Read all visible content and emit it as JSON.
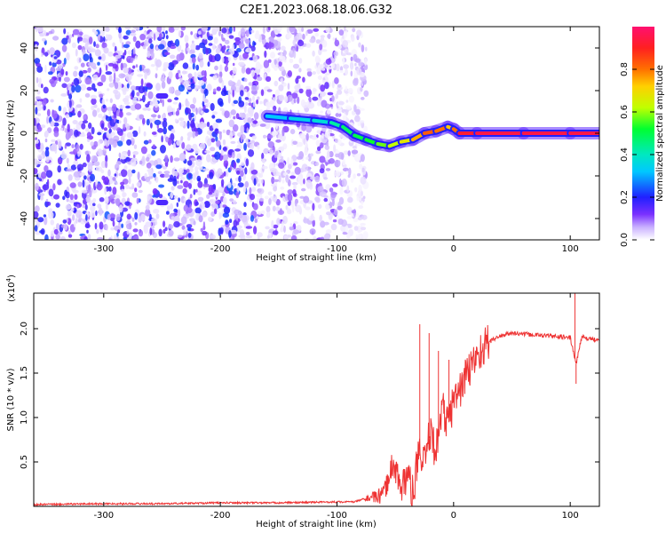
{
  "title": "C2E1.2023.068.18.06.G32",
  "chart_data": [
    {
      "type": "heatmap",
      "xlabel": "Height of straight line (km)",
      "ylabel": "Frequency (Hz)",
      "xlim": [
        -360,
        125
      ],
      "ylim": [
        -50,
        50
      ],
      "xticks": [
        -300,
        -200,
        -100,
        0,
        100
      ],
      "yticks": [
        -40,
        -20,
        0,
        20,
        40
      ],
      "xtick_labels": [
        "-300",
        "-200",
        "-100",
        "0",
        "100"
      ],
      "ytick_labels": [
        "-40",
        "-20",
        "0",
        "20",
        "40"
      ],
      "colorbar": {
        "label": "Normalized spectral amplitude",
        "range": [
          0,
          1
        ],
        "ticks": [
          0.0,
          0.2,
          0.4,
          0.6,
          0.8
        ],
        "tick_labels": [
          "0.0",
          "0.2",
          "0.4",
          "0.6",
          "0.8"
        ]
      },
      "signal_trace": {
        "x": [
          -160,
          -140,
          -120,
          -105,
          -95,
          -85,
          -75,
          -65,
          -55,
          -45,
          -35,
          -25,
          -15,
          -5,
          0,
          5,
          20,
          60,
          100,
          125
        ],
        "frequency": [
          8,
          7,
          6,
          5,
          3,
          -1,
          -3,
          -5,
          -6,
          -4,
          -3,
          0,
          1,
          3,
          2,
          0,
          0,
          0,
          0,
          0
        ],
        "amplitude": [
          0.3,
          0.35,
          0.35,
          0.4,
          0.45,
          0.5,
          0.5,
          0.55,
          0.6,
          0.65,
          0.7,
          0.8,
          0.85,
          0.75,
          0.7,
          0.9,
          0.95,
          0.95,
          0.95,
          0.95
        ]
      },
      "noise_region_x": [
        -360,
        -75
      ]
    },
    {
      "type": "line",
      "xlabel": "Height of straight line (km)",
      "ylabel": "SNR (10 * v/v)",
      "scale_label": "(x10",
      "scale_exponent": "4",
      "scale_suffix": ")",
      "xlim": [
        -360,
        125
      ],
      "ylim": [
        0,
        2.4
      ],
      "xticks": [
        -300,
        -200,
        -100,
        0,
        100
      ],
      "yticks": [
        0.5,
        1.0,
        1.5,
        2.0
      ],
      "xtick_labels": [
        "-300",
        "-200",
        "-100",
        "0",
        "100"
      ],
      "ytick_labels": [
        "0.5",
        "1.0",
        "1.5",
        "2.0"
      ],
      "series": [
        {
          "color": "#ee3333",
          "x": [
            -360,
            -300,
            -250,
            -200,
            -150,
            -100,
            -85,
            -78,
            -70,
            -60,
            -52,
            -48,
            -45,
            -40,
            -35,
            -30,
            -25,
            -20,
            -15,
            -10,
            -5,
            0,
            5,
            10,
            20,
            30,
            40,
            50,
            60,
            70,
            80,
            90,
            100,
            105,
            110,
            115,
            125
          ],
          "values": [
            0.02,
            0.03,
            0.03,
            0.04,
            0.04,
            0.05,
            0.05,
            0.08,
            0.1,
            0.12,
            0.5,
            0.35,
            0.15,
            0.4,
            0.12,
            0.6,
            0.45,
            0.85,
            0.6,
            1.15,
            0.9,
            1.2,
            1.3,
            1.45,
            1.7,
            1.85,
            1.92,
            1.95,
            1.94,
            1.93,
            1.92,
            1.91,
            1.9,
            1.6,
            1.92,
            1.88,
            1.88
          ]
        }
      ],
      "spikes": [
        {
          "x": -29,
          "value": 2.05
        },
        {
          "x": -21,
          "value": 1.95
        },
        {
          "x": -13,
          "value": 1.75
        },
        {
          "x": -4,
          "value": 1.65
        },
        {
          "x": 104,
          "value": 2.4
        },
        {
          "x": 105,
          "value": 1.38
        }
      ]
    }
  ]
}
